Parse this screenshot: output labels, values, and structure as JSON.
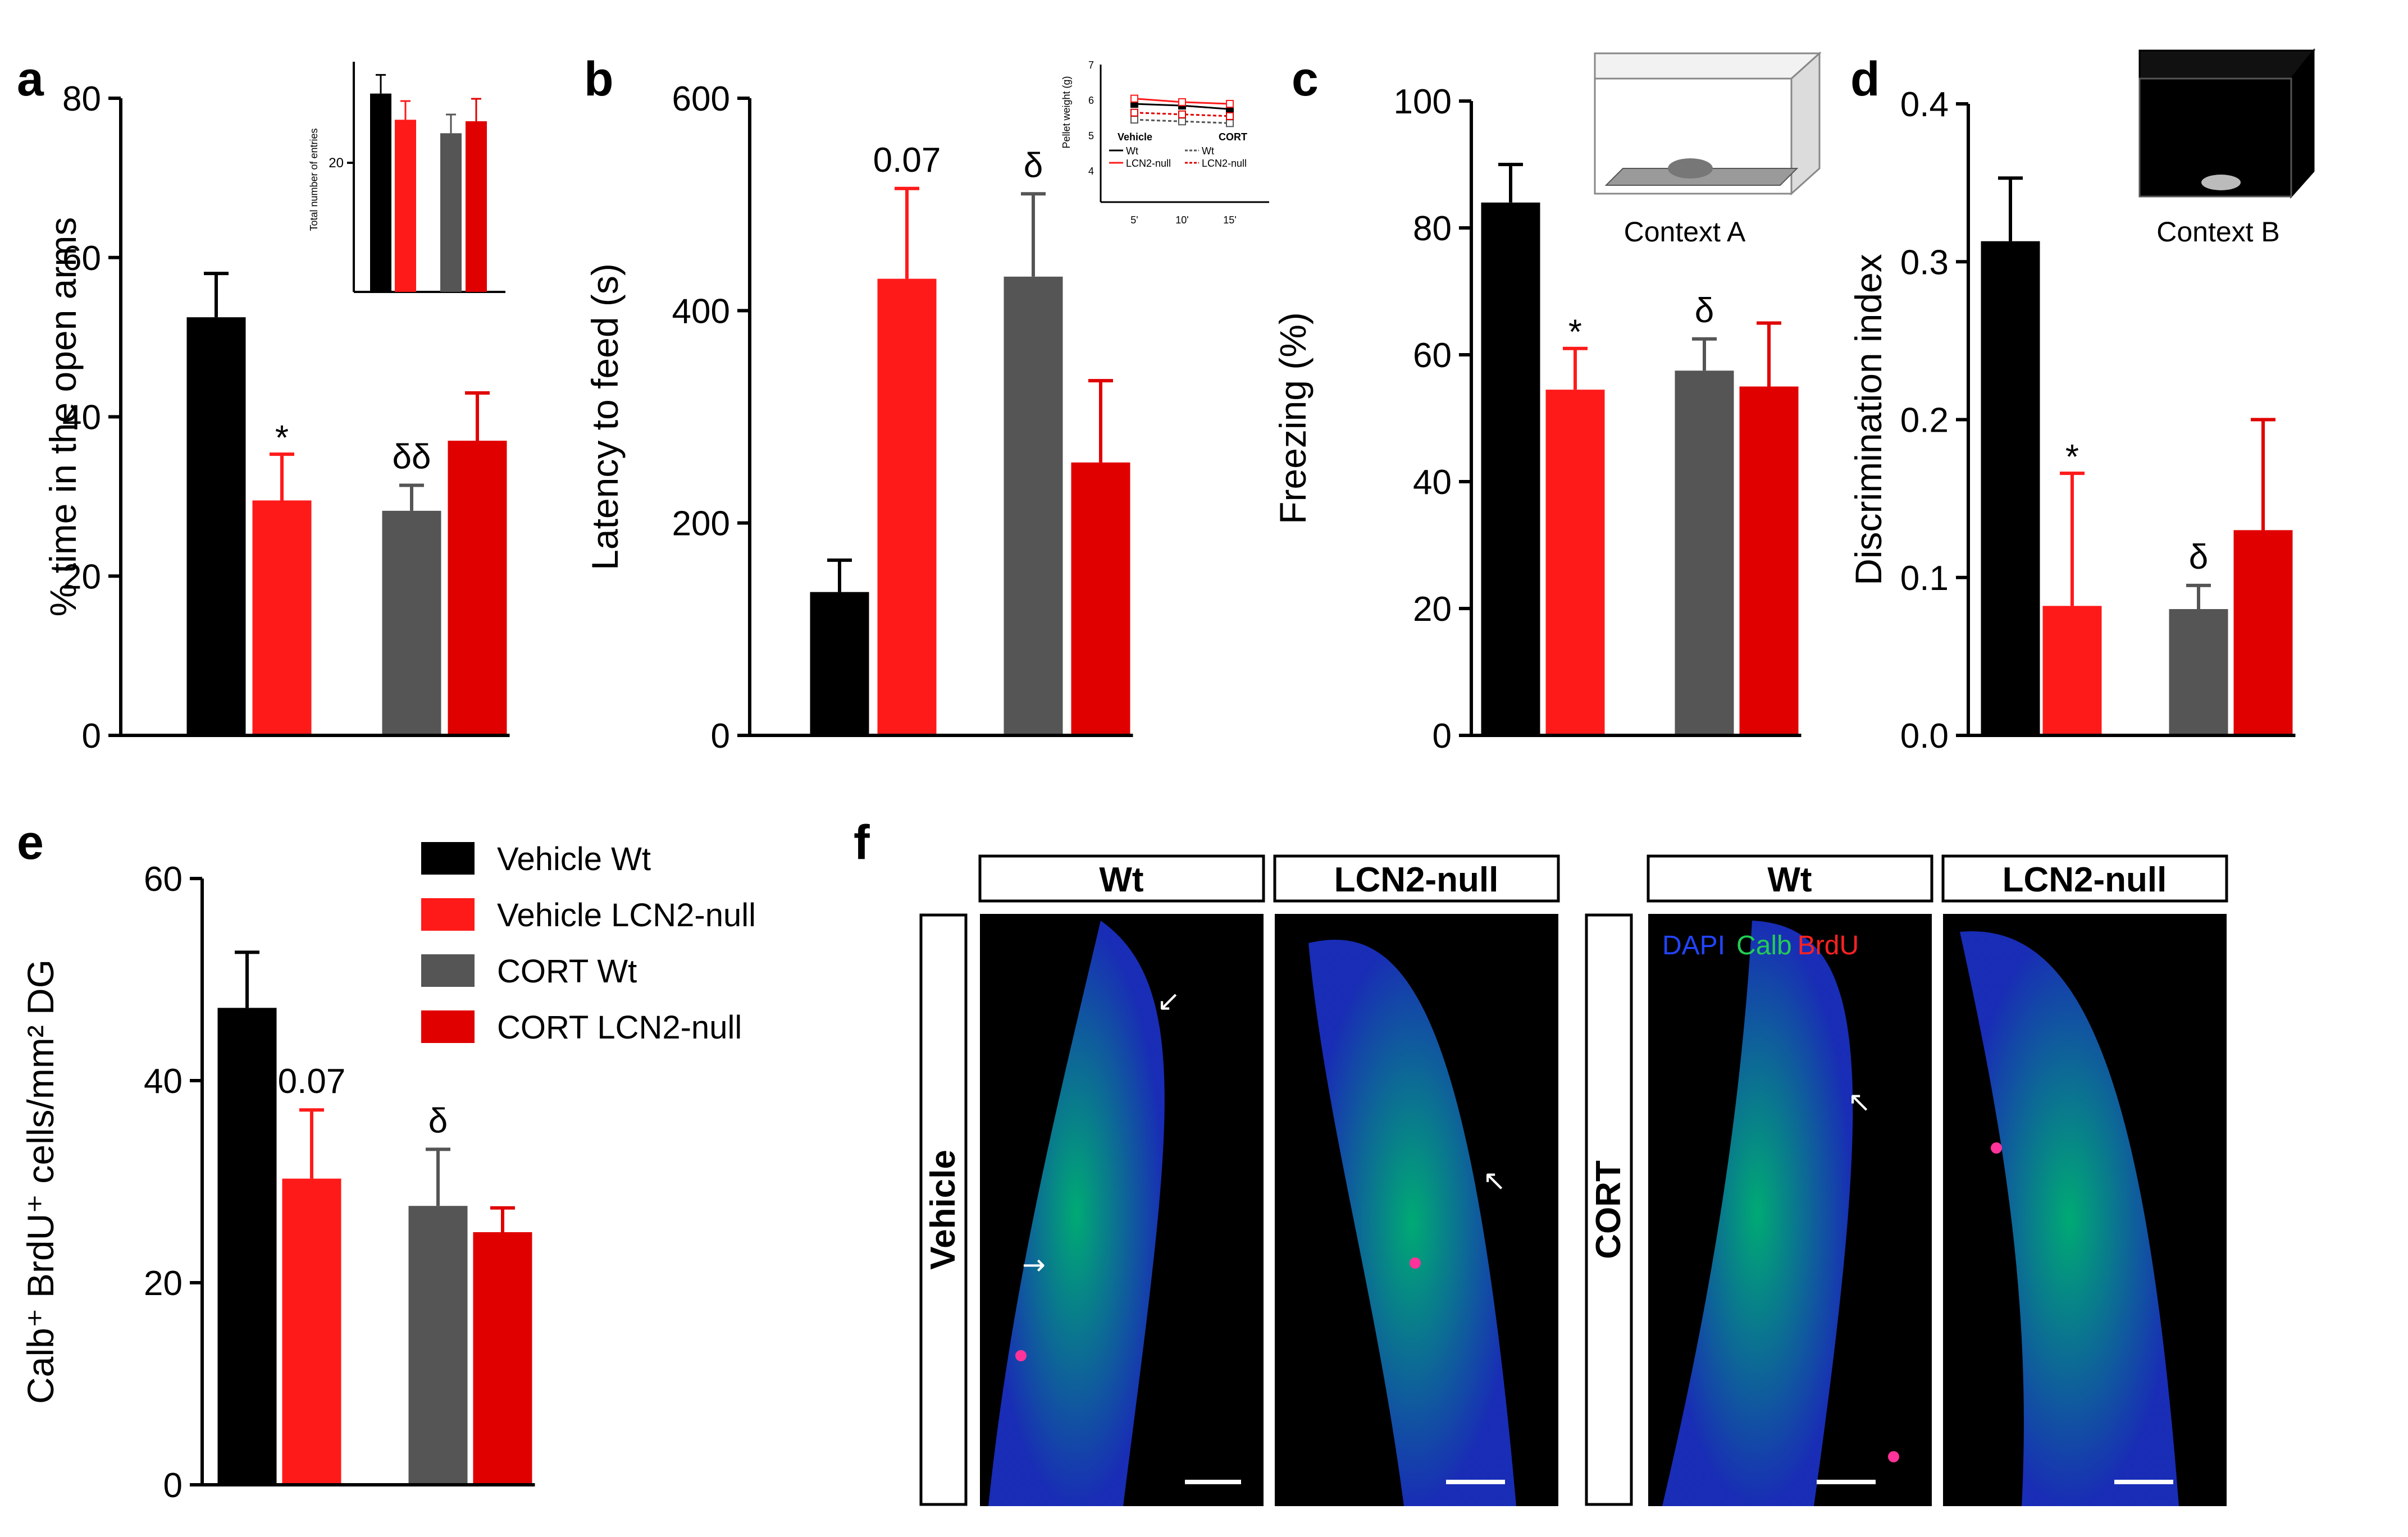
{
  "colors": {
    "veh_wt": "#000000",
    "veh_ko": "#ff1a1a",
    "cort_wt": "#555555",
    "cort_ko": "#e00000"
  },
  "legend": [
    {
      "label": "Vehicle Wt",
      "color": "#000000"
    },
    {
      "label": "Vehicle LCN2-null",
      "color": "#ff1a1a"
    },
    {
      "label": "CORT Wt",
      "color": "#555555"
    },
    {
      "label": "CORT LCN2-null",
      "color": "#e00000"
    }
  ],
  "panels": {
    "a": "a",
    "b": "b",
    "c": "c",
    "d": "d",
    "e": "e",
    "f": "f"
  },
  "context_labels": {
    "c": "Context A",
    "d": "Context B"
  },
  "inset_a": {
    "ylabel": "Total number of entries",
    "tick": "20"
  },
  "inset_b": {
    "ylabel": "Pellet weight (g)",
    "yticks": [
      "7",
      "6",
      "5",
      "4"
    ],
    "xticks": [
      "5'",
      "10'",
      "15'"
    ],
    "vehicle": "Vehicle",
    "cort": "CORT",
    "wt": "Wt",
    "null": "LCN2-null"
  },
  "image_panel": {
    "col_headers": [
      "Wt",
      "LCN2-null",
      "Wt",
      "LCN2-null"
    ],
    "row_labels": [
      "Vehicle",
      "CORT"
    ],
    "stain_dapi": "DAPI",
    "stain_calb": "Calb",
    "stain_brdu": "BrdU"
  },
  "chart_data": [
    {
      "id": "a",
      "type": "bar",
      "title": "",
      "ylabel": "% time in the open arms",
      "ylim": [
        0,
        80
      ],
      "yticks": [
        "0",
        "20",
        "40",
        "60",
        "80"
      ],
      "categories": [
        "Vehicle Wt",
        "Vehicle LCN2-null",
        "CORT Wt",
        "CORT LCN2-null"
      ],
      "values": [
        52.5,
        29.5,
        28.2,
        37
      ],
      "errors": [
        5.5,
        5.8,
        3.2,
        6
      ],
      "annotations": [
        "",
        "*",
        "δδ",
        ""
      ],
      "inset": {
        "values": [
          26.5,
          23,
          21.2,
          22.8
        ],
        "errors": [
          2.5,
          2.5,
          2.5,
          3
        ]
      }
    },
    {
      "id": "b",
      "type": "bar",
      "ylabel": "Latency to feed (s)",
      "ylim": [
        0,
        600
      ],
      "yticks": [
        "0",
        "200",
        "400",
        "600"
      ],
      "categories": [
        "Vehicle Wt",
        "Vehicle LCN2-null",
        "CORT Wt",
        "CORT LCN2-null"
      ],
      "values": [
        135,
        430,
        432,
        257
      ],
      "errors": [
        30,
        85,
        78,
        77
      ],
      "annotations": [
        "",
        "0.07",
        "δ",
        ""
      ],
      "inset": {
        "x": [
          "5'",
          "10'",
          "15'"
        ],
        "series": [
          {
            "name": "Vehicle Wt",
            "values": [
              5.8,
              5.75,
              5.65
            ]
          },
          {
            "name": "Vehicle LCN2-null",
            "values": [
              5.95,
              5.85,
              5.8
            ]
          },
          {
            "name": "CORT Wt",
            "values": [
              5.35,
              5.3,
              5.25
            ]
          },
          {
            "name": "CORT LCN2-null",
            "values": [
              5.55,
              5.5,
              5.45
            ]
          }
        ]
      }
    },
    {
      "id": "c",
      "type": "bar",
      "ylabel": "Freezing (%)",
      "ylim": [
        0,
        100
      ],
      "yticks": [
        "0",
        "20",
        "40",
        "60",
        "80",
        "100"
      ],
      "categories": [
        "Vehicle Wt",
        "Vehicle LCN2-null",
        "CORT Wt",
        "CORT LCN2-null"
      ],
      "values": [
        84,
        54.5,
        57.5,
        55
      ],
      "errors": [
        6,
        6.5,
        5,
        10
      ],
      "annotations": [
        "",
        "*",
        "δ",
        ""
      ]
    },
    {
      "id": "d",
      "type": "bar",
      "ylabel": "Discrimination index",
      "ylim": [
        0,
        0.4
      ],
      "yticks": [
        "0.0",
        "0.1",
        "0.2",
        "0.3",
        "0.4"
      ],
      "categories": [
        "Vehicle Wt",
        "Vehicle LCN2-null",
        "CORT Wt",
        "CORT LCN2-null"
      ],
      "values": [
        0.313,
        0.082,
        0.08,
        0.13
      ],
      "errors": [
        0.04,
        0.084,
        0.015,
        0.07
      ],
      "annotations": [
        "",
        "*",
        "δ",
        ""
      ]
    },
    {
      "id": "e",
      "type": "bar",
      "ylabel": "Calb⁺ BrdU⁺ cells/mm² DG",
      "ylim": [
        0,
        60
      ],
      "yticks": [
        "0",
        "20",
        "40",
        "60"
      ],
      "categories": [
        "Vehicle Wt",
        "Vehicle LCN2-null",
        "CORT Wt",
        "CORT LCN2-null"
      ],
      "values": [
        47.2,
        30.3,
        27.6,
        25
      ],
      "errors": [
        5.5,
        6.8,
        5.6,
        2.4
      ],
      "annotations": [
        "",
        "0.07",
        "δ",
        ""
      ]
    }
  ]
}
